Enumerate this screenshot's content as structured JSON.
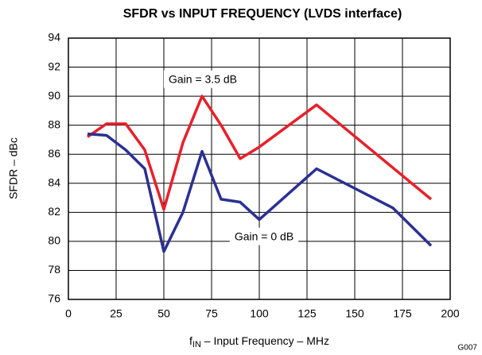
{
  "chart_data": {
    "type": "line",
    "title": "SFDR vs INPUT FREQUENCY (LVDS interface)",
    "ylabel": "SFDR – dBc",
    "xlabel": {
      "f": "f",
      "sub": "IN",
      "rest": " – Input Frequency – MHz"
    },
    "code": "G007",
    "xlim": [
      0,
      200
    ],
    "xticks": [
      0,
      25,
      50,
      75,
      100,
      125,
      150,
      175,
      200
    ],
    "ylim": [
      76,
      94
    ],
    "yticks": [
      76,
      78,
      80,
      82,
      84,
      86,
      88,
      90,
      92,
      94
    ],
    "grid": true,
    "series": [
      {
        "name": "Gain = 3.5 dB",
        "color": "#e8202a",
        "x": [
          10,
          20,
          30,
          40,
          50,
          60,
          70,
          80,
          90,
          100,
          130,
          190
        ],
        "values": [
          87.2,
          88.1,
          88.1,
          86.3,
          82.2,
          86.8,
          90.0,
          88.0,
          85.7,
          86.5,
          89.4,
          82.9
        ]
      },
      {
        "name": "Gain = 0 dB",
        "color": "#2b3092",
        "x": [
          10,
          20,
          30,
          40,
          50,
          60,
          70,
          80,
          90,
          100,
          130,
          170,
          190
        ],
        "values": [
          87.4,
          87.3,
          86.3,
          85.0,
          79.3,
          82.0,
          86.2,
          82.9,
          82.7,
          81.5,
          85.0,
          82.3,
          79.7
        ]
      }
    ]
  }
}
